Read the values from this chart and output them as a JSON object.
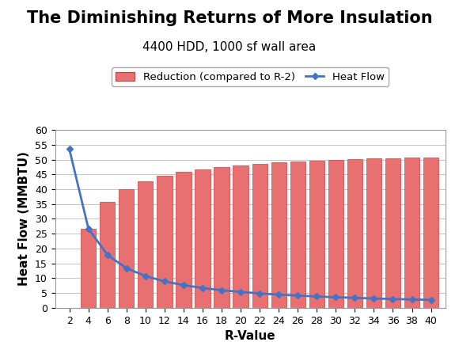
{
  "title": "The Diminishing Returns of More Insulation",
  "subtitle": "4400 HDD, 1000 sf wall area",
  "xlabel": "R-Value",
  "ylabel": "Heat Flow (MMBTU)",
  "r_values": [
    2,
    4,
    6,
    8,
    10,
    12,
    14,
    16,
    18,
    20,
    22,
    24,
    26,
    28,
    30,
    32,
    34,
    36,
    38,
    40
  ],
  "heat_flow": [
    53.5,
    26.75,
    17.83,
    13.375,
    10.7,
    8.92,
    7.64,
    6.69,
    5.94,
    5.35,
    4.86,
    4.46,
    4.12,
    3.82,
    3.57,
    3.34,
    3.15,
    2.97,
    2.82,
    2.675
  ],
  "reduction": [
    0,
    26.75,
    35.67,
    40.125,
    42.8,
    44.58,
    45.86,
    46.81,
    47.56,
    48.15,
    48.64,
    49.04,
    49.38,
    49.68,
    49.93,
    50.16,
    50.35,
    50.53,
    50.68,
    50.825
  ],
  "bar_color": "#E87070",
  "bar_edge_color": "#C84040",
  "line_color": "#4472C4",
  "marker_color": "#4472C4",
  "background_color": "#FFFFFF",
  "ylim": [
    0,
    60
  ],
  "yticks": [
    0,
    5,
    10,
    15,
    20,
    25,
    30,
    35,
    40,
    45,
    50,
    55,
    60
  ],
  "legend_reduction": "Reduction (compared to R-2)",
  "legend_heatflow": "Heat Flow",
  "title_fontsize": 15,
  "subtitle_fontsize": 11,
  "axis_label_fontsize": 11,
  "tick_fontsize": 9
}
